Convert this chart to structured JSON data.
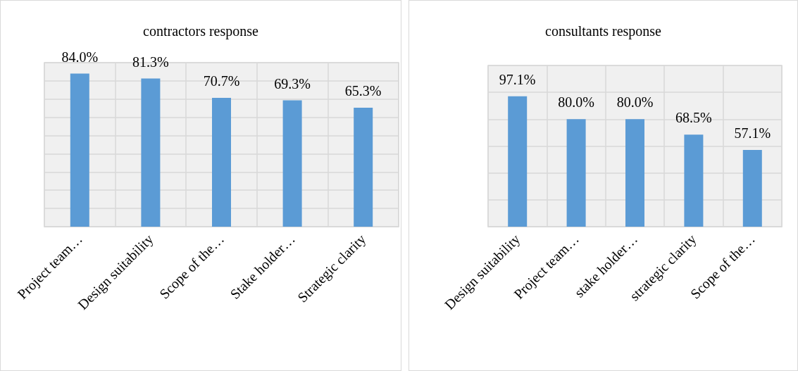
{
  "chart_data": [
    {
      "type": "bar",
      "title": "contractors response",
      "categories": [
        "Project team…",
        "Design suitability",
        "Scope of the…",
        "Stake holder…",
        "Strategic clarity"
      ],
      "values": [
        84.0,
        81.3,
        70.7,
        69.3,
        65.3
      ],
      "value_labels": [
        "84.0%",
        "81.3%",
        "70.7%",
        "69.3%",
        "65.3%"
      ],
      "color": "#5b9bd5",
      "ylim": [
        0,
        90
      ],
      "yticks": [
        {
          "value": 0,
          "label": null
        },
        {
          "value": 10,
          "label": null
        },
        {
          "value": 20,
          "label": null
        },
        {
          "value": 30,
          "label": null
        },
        {
          "value": 40,
          "label": null
        },
        {
          "value": 50,
          "label": null
        },
        {
          "value": 60,
          "label": null
        },
        {
          "value": 70,
          "label": null
        },
        {
          "value": 80,
          "label": null
        },
        {
          "value": 90,
          "label": null
        }
      ],
      "tick_labels": "x",
      "grid": true
    },
    {
      "type": "bar",
      "title": "consultants response",
      "categories": [
        "Design suitability",
        "Project team…",
        "stake holder…",
        "strategic clarity",
        "Scope of the…"
      ],
      "values": [
        97.1,
        80.0,
        80.0,
        68.5,
        57.1
      ],
      "value_labels": [
        "97.1%",
        "80.0%",
        "80.0%",
        "68.5%",
        "57.1%"
      ],
      "color": "#5b9bd5",
      "ylim": [
        0,
        120
      ],
      "yticks": [
        {
          "value": 0,
          "label": null
        },
        {
          "value": 20,
          "label": null
        },
        {
          "value": 40,
          "label": null
        },
        {
          "value": 60,
          "label": null
        },
        {
          "value": 80,
          "label": null
        },
        {
          "value": 100,
          "label": null
        },
        {
          "value": 120,
          "label": null
        }
      ],
      "tick_labels": "x",
      "grid": true
    }
  ]
}
